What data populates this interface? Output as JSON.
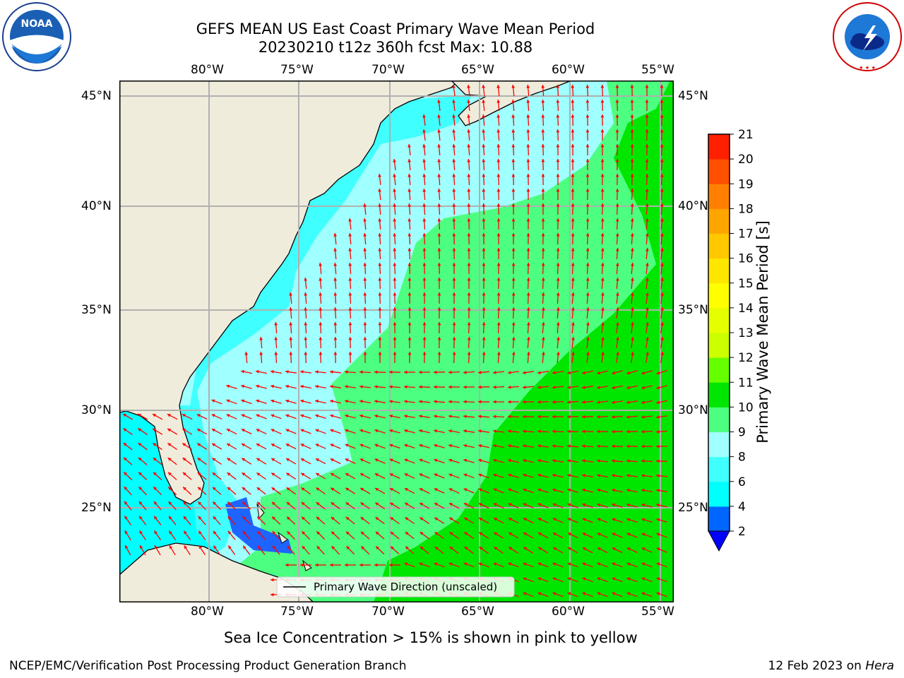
{
  "header": {
    "title_line1": "GEFS MEAN US East Coast Primary Wave Mean Period",
    "title_line2": "20230210 t12z 360h fcst   Max: 10.88"
  },
  "logos": {
    "left": {
      "icon": "noaa-logo",
      "text": "NOAA"
    },
    "right": {
      "icon": "national-weather-service-logo",
      "text": "NATIONAL WEATHER SERVICE"
    }
  },
  "map": {
    "lon_labels": [
      "80°W",
      "75°W",
      "70°W",
      "65°W",
      "60°W",
      "55°W"
    ],
    "lat_labels": [
      "45°N",
      "40°N",
      "35°N",
      "30°N",
      "25°N"
    ],
    "legend_label": "Primary Wave Direction (unscaled)",
    "arrow_color": "#ff0000",
    "land_color": "#efecdc"
  },
  "colorbar": {
    "label": "Primary Wave Mean Period [s]",
    "ticks": [
      "2",
      "4",
      "6",
      "8",
      "9",
      "10",
      "11",
      "12",
      "13",
      "14",
      "15",
      "16",
      "17",
      "18",
      "19",
      "20",
      "21"
    ],
    "colors": [
      "#0066ff",
      "#00ffff",
      "#40ffff",
      "#a0ffff",
      "#4dff80",
      "#00e600",
      "#66ff00",
      "#ccff00",
      "#e6ff00",
      "#ffff00",
      "#ffe600",
      "#ffc800",
      "#ffa500",
      "#ff8000",
      "#ff5000",
      "#ff2000"
    ],
    "under_color": "#0000ff"
  },
  "captions": {
    "sea_ice": "Sea Ice Concentration > 15% is shown in pink to yellow",
    "branch": "NCEP/EMC/Verification Post Processing Product Generation Branch",
    "date": "12 Feb 2023 on ",
    "machine": "Hera"
  }
}
